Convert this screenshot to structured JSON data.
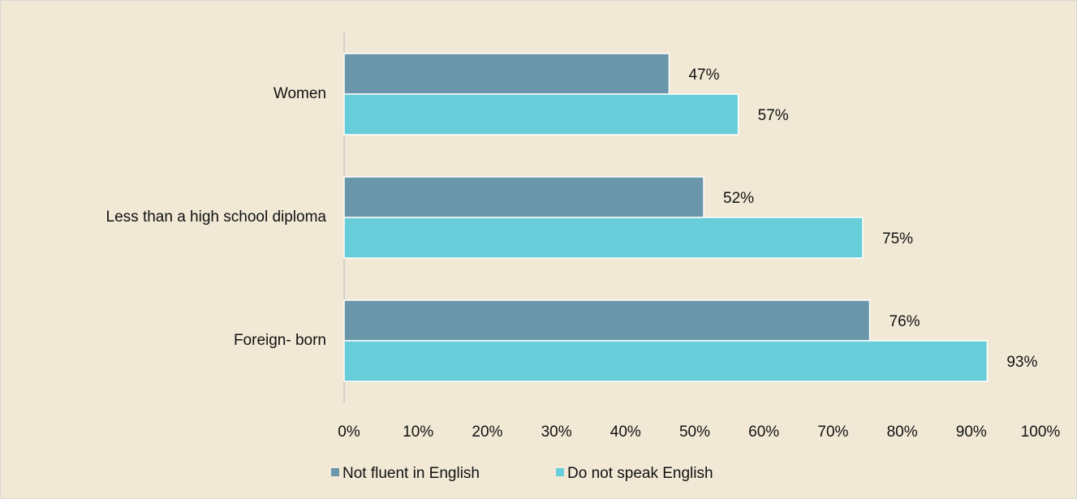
{
  "chart_data": {
    "type": "bar",
    "orientation": "horizontal",
    "categories": [
      "Women",
      "Less than a high school diploma",
      "Foreign- born"
    ],
    "series": [
      {
        "name": "Not fluent in English",
        "color": "#6a96aa",
        "values": [
          47,
          52,
          76
        ],
        "value_labels": [
          "47%",
          "52%",
          "76%"
        ]
      },
      {
        "name": "Do not speak English",
        "color": "#66cdd9",
        "values": [
          57,
          75,
          93
        ],
        "value_labels": [
          "57%",
          "75%",
          "93%"
        ]
      }
    ],
    "xlim": [
      0,
      100
    ],
    "xticks": [
      {
        "value": 0,
        "label": "0%"
      },
      {
        "value": 10,
        "label": "10%"
      },
      {
        "value": 20,
        "label": "20%"
      },
      {
        "value": 30,
        "label": "30%"
      },
      {
        "value": 40,
        "label": "40%"
      },
      {
        "value": 50,
        "label": "50%"
      },
      {
        "value": 60,
        "label": "60%"
      },
      {
        "value": 70,
        "label": "70%"
      },
      {
        "value": 80,
        "label": "80%"
      },
      {
        "value": 90,
        "label": "90%"
      },
      {
        "value": 100,
        "label": "100%"
      }
    ],
    "grid": false,
    "legend": "bottom"
  }
}
